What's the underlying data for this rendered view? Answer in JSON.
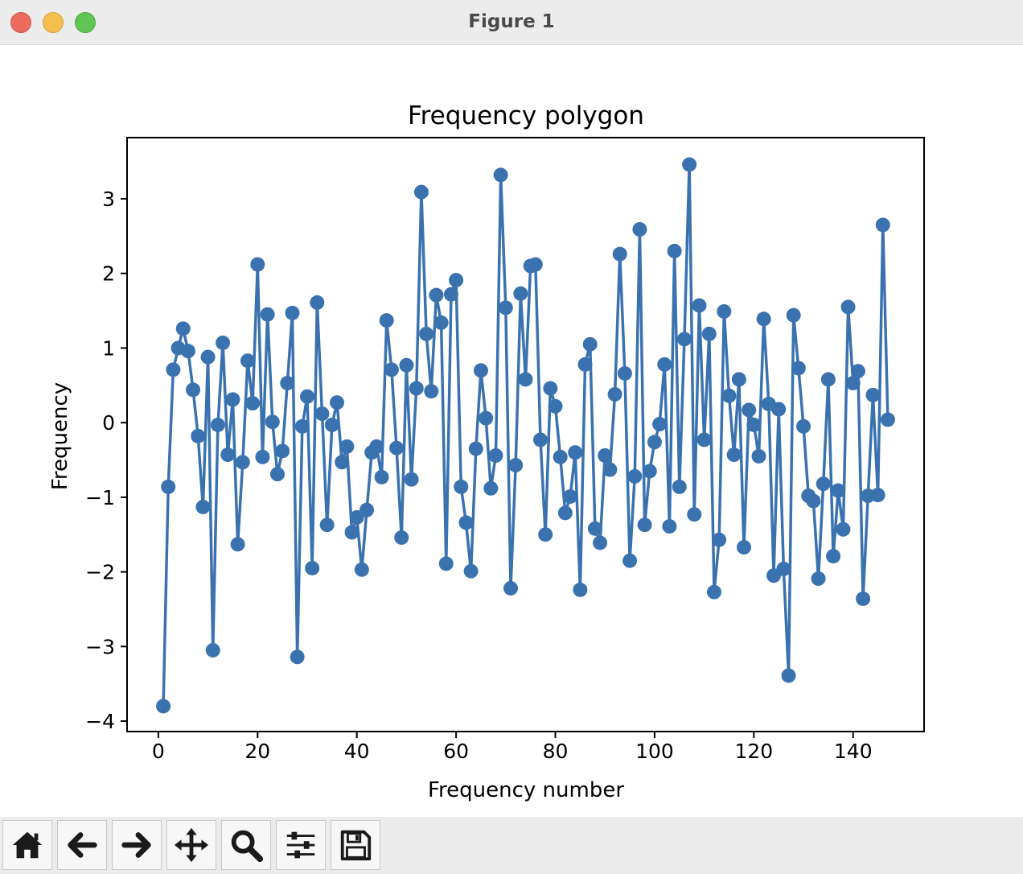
{
  "window": {
    "title": "Figure 1"
  },
  "toolbar": {
    "buttons": [
      {
        "name": "home-button",
        "icon": "home-icon"
      },
      {
        "name": "back-button",
        "icon": "arrow-left-icon"
      },
      {
        "name": "forward-button",
        "icon": "arrow-right-icon"
      },
      {
        "name": "pan-button",
        "icon": "move-icon"
      },
      {
        "name": "zoom-button",
        "icon": "magnifier-icon"
      },
      {
        "name": "configure-subplots-button",
        "icon": "sliders-icon"
      },
      {
        "name": "save-button",
        "icon": "floppy-disk-icon"
      }
    ]
  },
  "chart_data": {
    "type": "line",
    "title": "Frequency polygon",
    "xlabel": "Frequency number",
    "ylabel": "Frequency",
    "xlim": [
      -6.3,
      154.3
    ],
    "ylim": [
      -4.14,
      3.82
    ],
    "xticks": [
      0,
      20,
      40,
      60,
      80,
      100,
      120,
      140
    ],
    "yticks": [
      -4,
      -3,
      -2,
      -1,
      0,
      1,
      2,
      3
    ],
    "xtick_labels": [
      "0",
      "20",
      "40",
      "60",
      "80",
      "100",
      "120",
      "140"
    ],
    "ytick_labels": [
      "−4",
      "−3",
      "−2",
      "−1",
      "0",
      "1",
      "2",
      "3"
    ],
    "color": "#3a72b0",
    "marker": "circle",
    "grid": false,
    "legend": "none",
    "x_start": 1,
    "values": [
      -3.8,
      -0.86,
      0.71,
      1.0,
      1.26,
      0.96,
      0.44,
      -0.18,
      -1.13,
      0.88,
      -3.05,
      -0.03,
      1.07,
      -0.43,
      0.31,
      -1.63,
      -0.53,
      0.83,
      0.26,
      2.12,
      -0.46,
      1.45,
      0.01,
      -0.69,
      -0.38,
      0.53,
      1.47,
      -3.14,
      -0.05,
      0.35,
      -1.95,
      1.61,
      0.12,
      -1.37,
      -0.03,
      0.27,
      -0.53,
      -0.32,
      -1.47,
      -1.27,
      -1.97,
      -1.17,
      -0.4,
      -0.32,
      -0.73,
      1.37,
      0.71,
      -0.34,
      -1.54,
      0.77,
      -0.76,
      0.46,
      3.09,
      1.19,
      0.42,
      1.71,
      1.34,
      -1.89,
      1.72,
      1.91,
      -0.86,
      -1.34,
      -1.99,
      -0.35,
      0.7,
      0.06,
      -0.88,
      -0.44,
      3.32,
      1.54,
      -2.22,
      -0.57,
      1.73,
      0.58,
      2.1,
      2.12,
      -0.23,
      -1.5,
      0.46,
      0.22,
      -0.46,
      -1.21,
      -0.99,
      -0.4,
      -2.24,
      0.78,
      1.05,
      -1.42,
      -1.61,
      -0.44,
      -0.63,
      0.38,
      2.26,
      0.66,
      -1.85,
      -0.72,
      2.59,
      -1.37,
      -0.65,
      -0.26,
      -0.02,
      0.78,
      -1.39,
      2.3,
      -0.86,
      1.12,
      3.46,
      -1.23,
      1.57,
      -0.23,
      1.19,
      -2.27,
      -1.57,
      1.49,
      0.36,
      -0.43,
      0.58,
      -1.67,
      0.17,
      -0.03,
      -0.45,
      1.39,
      0.25,
      -2.05,
      0.18,
      -1.96,
      -3.39,
      1.44,
      0.73,
      -0.05,
      -0.98,
      -1.05,
      -2.09,
      -0.82,
      0.58,
      -1.79,
      -0.91,
      -1.43,
      1.55,
      0.53,
      0.69,
      -2.36,
      -0.98,
      0.37,
      -0.97,
      2.65,
      0.04
    ]
  }
}
